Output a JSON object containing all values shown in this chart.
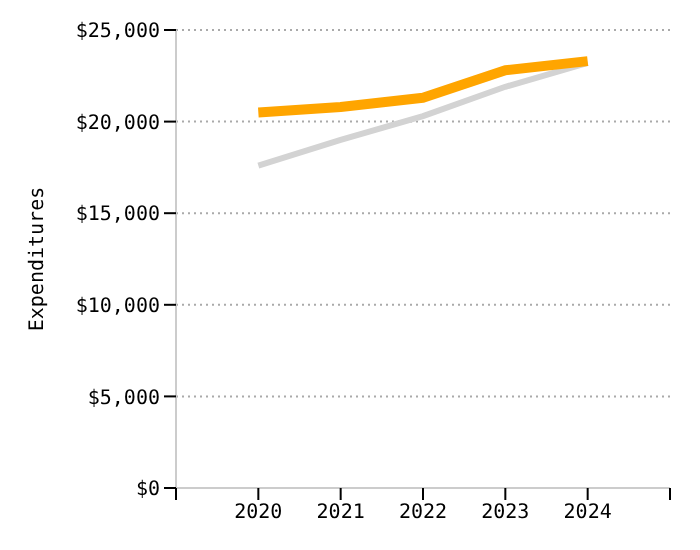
{
  "chart_data": {
    "type": "line",
    "ylabel": "Expenditures",
    "x": [
      2020,
      2021,
      2022,
      2023,
      2024
    ],
    "series": [
      {
        "color": "#d3d3d3",
        "values": [
          17600,
          19000,
          20300,
          21900,
          23200
        ]
      },
      {
        "color": "#ffa500",
        "values": [
          20500,
          20800,
          21300,
          22800,
          23300
        ]
      }
    ],
    "xlim": [
      2019,
      2025
    ],
    "xticks": [
      {
        "value": 2019,
        "label": null
      },
      2020,
      2021,
      2022,
      2023,
      2024,
      {
        "value": 2025,
        "label": null
      }
    ],
    "ylim": [
      0,
      25000
    ],
    "yticks": [
      {
        "value": 0,
        "label": "$0"
      },
      {
        "value": 5000,
        "label": "$5,000"
      },
      {
        "value": 10000,
        "label": "$10,000"
      },
      {
        "value": 15000,
        "label": "$15,000"
      },
      {
        "value": 20000,
        "label": "$20,000"
      },
      {
        "value": 25000,
        "label": "$25,000"
      }
    ],
    "grid": "y",
    "legend": false,
    "marker": "none",
    "line_style": "solid"
  }
}
